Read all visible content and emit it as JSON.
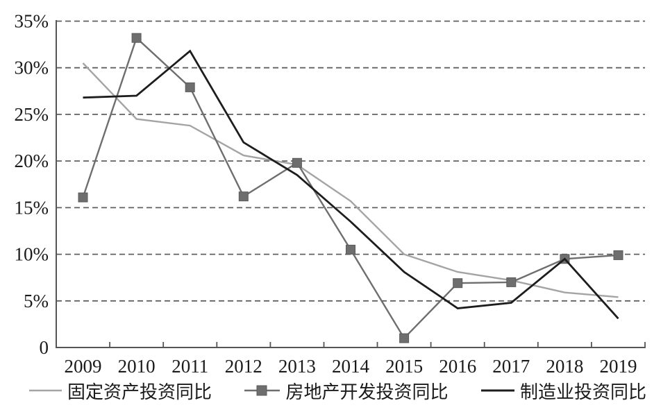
{
  "chart_data": {
    "type": "line",
    "title": "",
    "xlabel": "",
    "ylabel": "",
    "categories": [
      "2009",
      "2010",
      "2011",
      "2012",
      "2013",
      "2014",
      "2015",
      "2016",
      "2017",
      "2018",
      "2019"
    ],
    "series": [
      {
        "key": "fixed-asset-investment-yoy",
        "name": "固定资产投资同比",
        "values": [
          30.5,
          24.5,
          23.8,
          20.6,
          19.6,
          15.7,
          10.0,
          8.1,
          7.2,
          5.9,
          5.4
        ],
        "color": "#a4a4a4",
        "line_width": 2.4,
        "marker": "none"
      },
      {
        "key": "real-estate-development-investment-yoy",
        "name": "房地产开发投资同比",
        "values": [
          16.1,
          33.2,
          27.9,
          16.2,
          19.8,
          10.5,
          1.0,
          6.9,
          7.0,
          9.5,
          9.9
        ],
        "color": "#6e6e6e",
        "line_width": 2.4,
        "marker": "square",
        "marker_size": 13
      },
      {
        "key": "manufacturing-investment-yoy",
        "name": "制造业投资同比",
        "values": [
          26.8,
          27.0,
          31.8,
          22.0,
          18.5,
          13.5,
          8.1,
          4.2,
          4.8,
          9.5,
          3.1
        ],
        "color": "#1d1d1d",
        "line_width": 2.8,
        "marker": "none"
      }
    ],
    "ylim": [
      0,
      35
    ],
    "ytick_step": 5,
    "ytick_labels": [
      "0",
      "5%",
      "10%",
      "15%",
      "20%",
      "25%",
      "30%",
      "35%"
    ],
    "grid": "horizontal-dashed",
    "legend_position": "bottom",
    "colors": {
      "background": "#ffffff",
      "axis": "#555555",
      "gridline": "#606060",
      "label_text": "#1a1a1a"
    }
  }
}
